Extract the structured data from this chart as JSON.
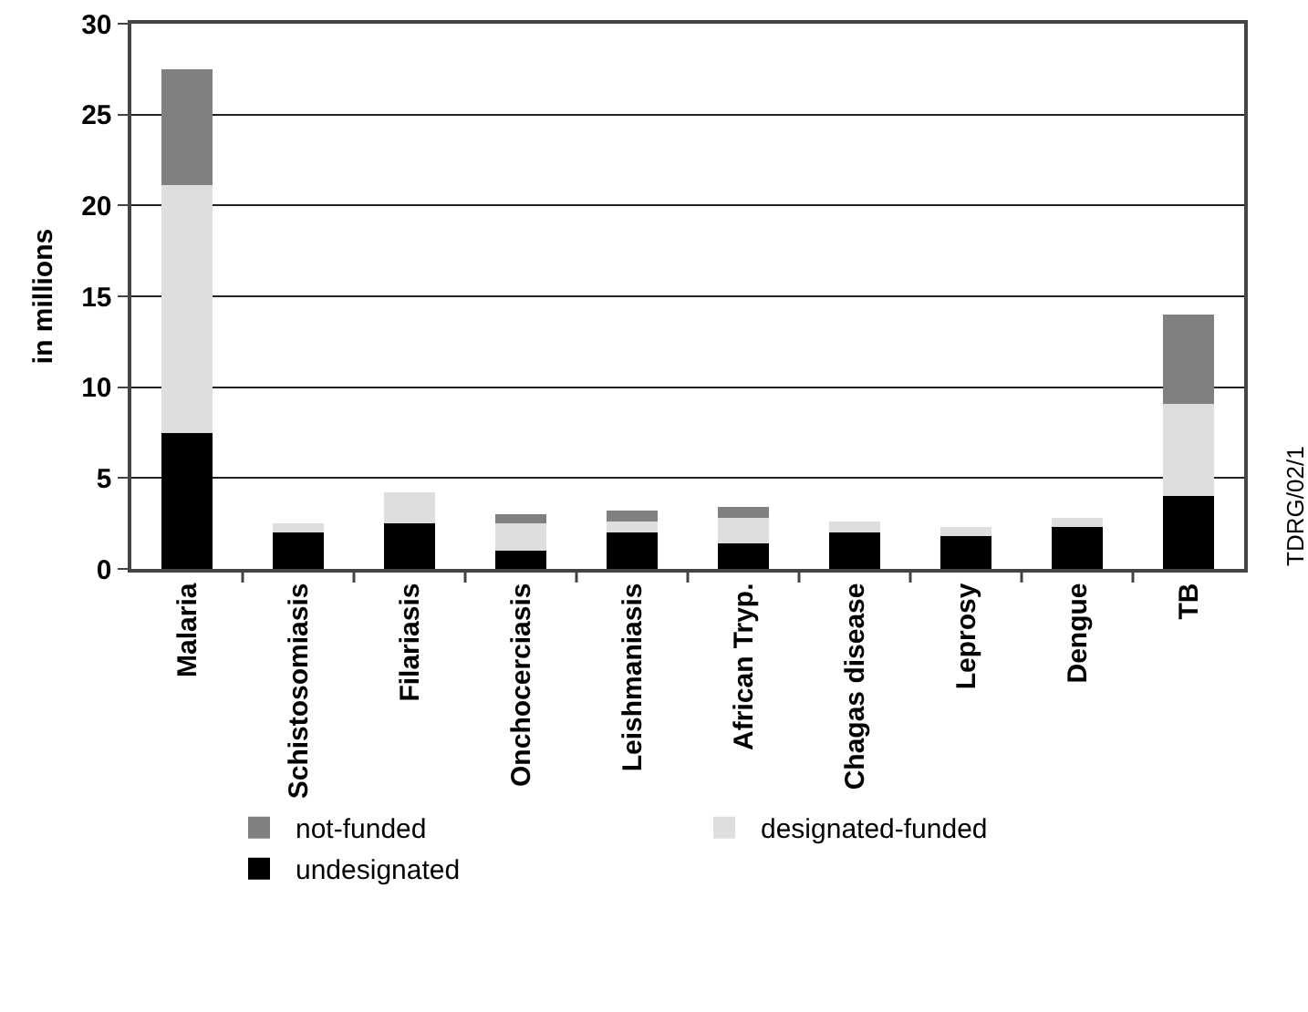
{
  "chart_data": {
    "type": "bar",
    "stacked": true,
    "ylabel": "in millions",
    "categories": [
      "Malaria",
      "Schistosomiasis",
      "Filariasis",
      "Onchocerciasis",
      "Leishmaniasis",
      "African Tryp.",
      "Chagas disease",
      "Leprosy",
      "Dengue",
      "TB"
    ],
    "series": [
      {
        "name": "undesignated",
        "color": "#000000",
        "values": [
          7.5,
          2.0,
          2.5,
          1.0,
          2.0,
          1.4,
          2.0,
          1.8,
          2.3,
          4.0
        ]
      },
      {
        "name": "designated-funded",
        "color": "#dedede",
        "values": [
          13.6,
          0.5,
          1.7,
          1.5,
          0.6,
          1.4,
          0.6,
          0.5,
          0.5,
          5.1
        ]
      },
      {
        "name": "not-funded",
        "color": "#808080",
        "values": [
          6.4,
          null,
          null,
          0.5,
          0.6,
          0.6,
          null,
          null,
          null,
          4.9
        ]
      }
    ],
    "ylim": [
      0,
      30
    ],
    "yticks": [
      0,
      5,
      10,
      15,
      20,
      25,
      30
    ],
    "grid": "y",
    "legend": "bottom",
    "annotations": [
      "TDRG/02/1"
    ]
  }
}
